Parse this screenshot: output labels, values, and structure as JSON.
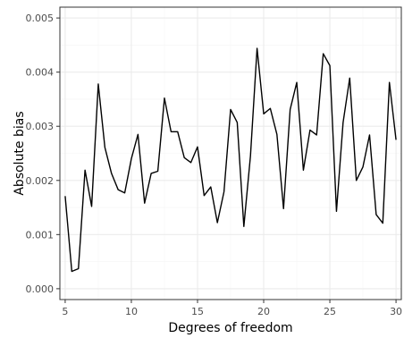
{
  "chart_data": {
    "type": "line",
    "title": "",
    "xlabel": "Degrees of freedom",
    "ylabel": "Absolute bias",
    "xlim": [
      4.6,
      30.4
    ],
    "ylim": [
      -0.0002,
      0.0052
    ],
    "x_ticks": [
      5,
      10,
      15,
      20,
      25,
      30
    ],
    "x_tick_labels": [
      "5",
      "10",
      "15",
      "20",
      "25",
      "30"
    ],
    "y_ticks": [
      0,
      0.001,
      0.002,
      0.003,
      0.004,
      0.005
    ],
    "y_tick_labels": [
      "0.000",
      "0.001",
      "0.002",
      "0.003",
      "0.004",
      "0.005"
    ],
    "grid": true,
    "theme": "bw",
    "series": [
      {
        "x": [
          5,
          5.5,
          6,
          6.5,
          7,
          7.5,
          8,
          8.5,
          9,
          9.5,
          10,
          10.5,
          11,
          11.5,
          12,
          12.5,
          13,
          13.5,
          14,
          14.5,
          15,
          15.5,
          16,
          16.5,
          17,
          17.5,
          18,
          18.5,
          19,
          19.5,
          20,
          20.5,
          21,
          21.5,
          22,
          22.5,
          23,
          23.5,
          24,
          24.5,
          25,
          25.5,
          26,
          26.5,
          27,
          27.5,
          28,
          28.5,
          29,
          29.5,
          30
        ],
        "values": [
          0.00171,
          0.00032,
          0.00037,
          0.00219,
          0.00152,
          0.00378,
          0.00261,
          0.00213,
          0.00183,
          0.00177,
          0.0024,
          0.00285,
          0.00158,
          0.00213,
          0.00217,
          0.00352,
          0.0029,
          0.0029,
          0.00242,
          0.00233,
          0.00262,
          0.00172,
          0.00188,
          0.00122,
          0.00179,
          0.00331,
          0.00307,
          0.00115,
          0.00245,
          0.00444,
          0.00323,
          0.00333,
          0.00285,
          0.00148,
          0.00331,
          0.00381,
          0.00219,
          0.00293,
          0.00284,
          0.00434,
          0.00412,
          0.00143,
          0.00307,
          0.00389,
          0.002,
          0.00225,
          0.00284,
          0.00137,
          0.00121,
          0.00381,
          0.00275
        ],
        "color": "#000000"
      }
    ]
  },
  "colors": {
    "panel_border": "#333333",
    "grid_major": "#ebebeb",
    "grid_minor": "#f5f5f5",
    "tick": "#333333",
    "tick_label": "#4d4d4d"
  }
}
